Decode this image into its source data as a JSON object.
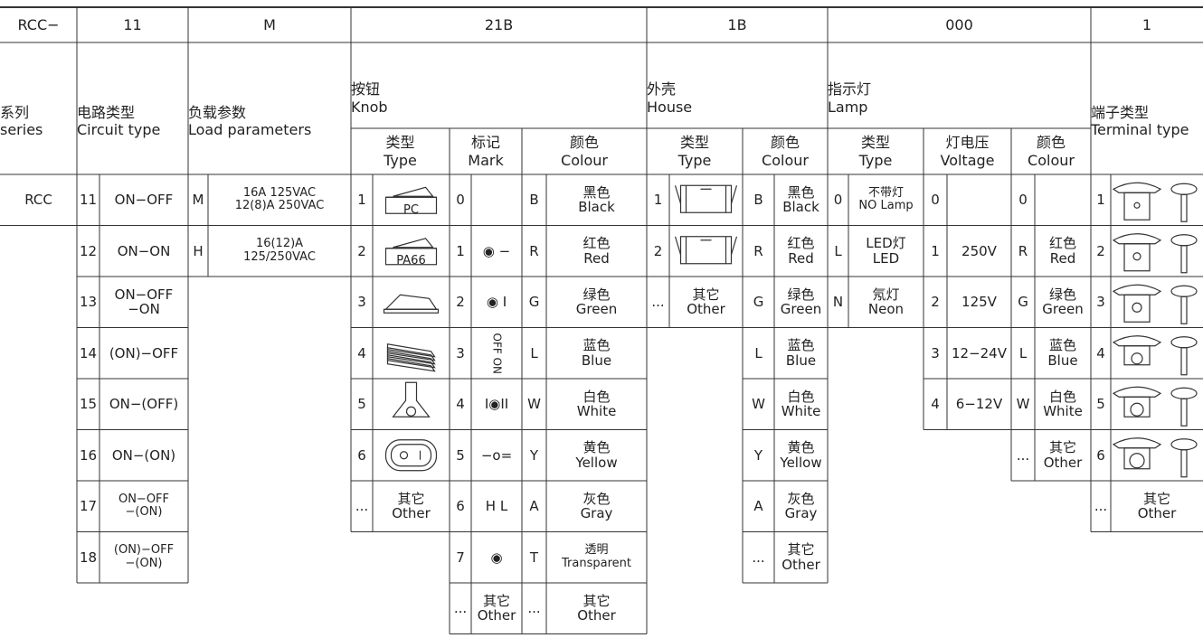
{
  "table": {
    "codes": [
      "RCC−",
      "11",
      "M",
      "21B",
      "1B",
      "000",
      "1"
    ],
    "headers": [
      {
        "zh": "系列",
        "en": "series"
      },
      {
        "zh": "电路类型",
        "en": "Circuit type"
      },
      {
        "zh": "负载参数",
        "en": "Load parameters"
      },
      {
        "zh": "按钮",
        "en": "Knob"
      },
      {
        "zh": "外壳",
        "en": "House"
      },
      {
        "zh": "指示灯",
        "en": "Lamp"
      },
      {
        "zh": "端子类型",
        "en": "Terminal type"
      }
    ],
    "subheaders": [
      {
        "zh": "类型",
        "en": "Type"
      },
      {
        "zh": "标记",
        "en": "Mark"
      },
      {
        "zh": "颜色",
        "en": "Colour"
      },
      {
        "zh": "类型",
        "en": "Type"
      },
      {
        "zh": "颜色",
        "en": "Colour"
      },
      {
        "zh": "类型",
        "en": "Type"
      },
      {
        "zh": "灯电压",
        "en": "Voltage"
      },
      {
        "zh": "颜色",
        "en": "Colour"
      }
    ],
    "columns": [
      {
        "rows": [
          {
            "text": "RCC"
          }
        ]
      },
      {
        "rows": [
          {
            "code": "11",
            "text": "ON−OFF"
          },
          {
            "code": "12",
            "text": "ON−ON"
          },
          {
            "code": "13",
            "text": "ON−OFF\n−ON"
          },
          {
            "code": "14",
            "text": "(ON)−OFF"
          },
          {
            "code": "15",
            "text": "ON−(OFF)"
          },
          {
            "code": "16",
            "text": "ON−(ON)"
          },
          {
            "code": "17",
            "text": "ON−OFF\n−(ON)"
          },
          {
            "code": "18",
            "text": "(ON)−OFF\n−(ON)"
          }
        ]
      },
      {
        "rows": [
          {
            "code": "M",
            "text": "16A 125VAC\n12(8)A 250VAC"
          },
          {
            "code": "H",
            "text": "16(12)A\n125/250VAC"
          }
        ]
      },
      {
        "rows": [
          {
            "code": "1",
            "label": "PC"
          },
          {
            "code": "2",
            "label": "PA66"
          },
          {
            "code": "3"
          },
          {
            "code": "4"
          },
          {
            "code": "5"
          },
          {
            "code": "6"
          },
          {
            "code": "...",
            "text": "其它\nOther"
          }
        ]
      },
      {
        "rows": [
          {
            "code": "0"
          },
          {
            "code": "1",
            "text": "◉ −"
          },
          {
            "code": "2",
            "text": "◉ I"
          },
          {
            "code": "3",
            "text": "OFF ON"
          },
          {
            "code": "4",
            "text": "I◉II"
          },
          {
            "code": "5",
            "text": "−o="
          },
          {
            "code": "6",
            "text": "H L"
          },
          {
            "code": "7",
            "text": "◉"
          },
          {
            "code": "...",
            "text": "其它\nOther"
          }
        ]
      },
      {
        "rows": [
          {
            "code": "B",
            "text": "黑色\nBlack"
          },
          {
            "code": "R",
            "text": "红色\nRed"
          },
          {
            "code": "G",
            "text": "绿色\nGreen"
          },
          {
            "code": "L",
            "text": "蓝色\nBlue"
          },
          {
            "code": "W",
            "text": "白色\nWhite"
          },
          {
            "code": "Y",
            "text": "黄色\nYellow"
          },
          {
            "code": "A",
            "text": "灰色\nGray"
          },
          {
            "code": "T",
            "text": "透明\nTransparent"
          },
          {
            "code": "...",
            "text": "其它\nOther"
          }
        ]
      },
      {
        "rows": [
          {
            "code": "1"
          },
          {
            "code": "2"
          },
          {
            "code": "...",
            "text": "其它\nOther"
          }
        ]
      },
      {
        "rows": [
          {
            "code": "B",
            "text": "黑色\nBlack"
          },
          {
            "code": "R",
            "text": "红色\nRed"
          },
          {
            "code": "G",
            "text": "绿色\nGreen"
          },
          {
            "code": "L",
            "text": "蓝色\nBlue"
          },
          {
            "code": "W",
            "text": "白色\nWhite"
          },
          {
            "code": "Y",
            "text": "黄色\nYellow"
          },
          {
            "code": "A",
            "text": "灰色\nGray"
          },
          {
            "code": "...",
            "text": "其它\nOther"
          }
        ]
      },
      {
        "rows": [
          {
            "code": "0",
            "text": "不带灯\nNO Lamp"
          },
          {
            "code": "L",
            "text": "LED灯\nLED"
          },
          {
            "code": "N",
            "text": "氖灯\nNeon"
          }
        ]
      },
      {
        "rows": [
          {
            "code": "0"
          },
          {
            "code": "1",
            "text": "250V"
          },
          {
            "code": "2",
            "text": "125V"
          },
          {
            "code": "3",
            "text": "12−24V"
          },
          {
            "code": "4",
            "text": "6−12V"
          }
        ]
      },
      {
        "rows": [
          {
            "code": "0"
          },
          {
            "code": "R",
            "text": "红色\nRed"
          },
          {
            "code": "G",
            "text": "绿色\nGreen"
          },
          {
            "code": "L",
            "text": "蓝色\nBlue"
          },
          {
            "code": "W",
            "text": "白色\nWhite"
          },
          {
            "code": "...",
            "text": "其它\nOther"
          }
        ]
      },
      {
        "rows": [
          {
            "code": "1"
          },
          {
            "code": "2"
          },
          {
            "code": "3"
          },
          {
            "code": "4"
          },
          {
            "code": "5"
          },
          {
            "code": "6"
          },
          {
            "code": "...",
            "text": "其它\nOther"
          }
        ]
      }
    ]
  }
}
